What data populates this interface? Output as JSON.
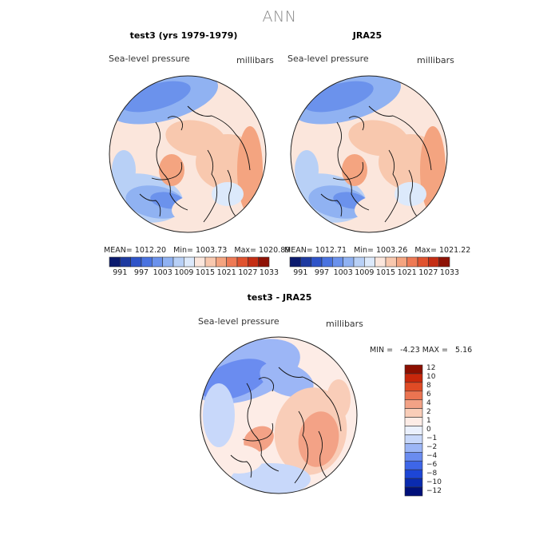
{
  "title": "ANN",
  "colors": {
    "abs_scale": [
      "#0a1a6e",
      "#1e3aa0",
      "#2f54c8",
      "#4a73e0",
      "#6b92ec",
      "#90b2f2",
      "#b8d0f6",
      "#dce9fb",
      "#fbe6dc",
      "#f8c8ae",
      "#f4a480",
      "#ee7a55",
      "#e0532f",
      "#c42e14",
      "#8e1206"
    ],
    "diff_scale": [
      "#00107a",
      "#0a2bb0",
      "#1d46d6",
      "#3e66e8",
      "#6a8cf0",
      "#9cb6f6",
      "#c8d8fa",
      "#eaf0fd",
      "#fdece6",
      "#f9cdb8",
      "#f3a286",
      "#eb7451",
      "#e04b25",
      "#c8270b",
      "#8c0f00"
    ],
    "coast": "#111111"
  },
  "panels": [
    {
      "title": "test3 (yrs 1979-1979)",
      "variable": "Sea-level pressure",
      "units": "millibars",
      "stats": {
        "mean_label": "MEAN=",
        "mean": "1012.20",
        "min_label": "Min=",
        "min": "1003.73",
        "max_label": "Max=",
        "max": "1020.89"
      },
      "colorbar_ticks": [
        "991",
        "997",
        "1003",
        "1009",
        "1015",
        "1021",
        "1027",
        "1033"
      ]
    },
    {
      "title": "JRA25",
      "variable": "Sea-level pressure",
      "units": "millibars",
      "stats": {
        "mean_label": "MEAN=",
        "mean": "1012.71",
        "min_label": "Min=",
        "min": "1003.26",
        "max_label": "Max=",
        "max": "1021.22"
      },
      "colorbar_ticks": [
        "991",
        "997",
        "1003",
        "1009",
        "1015",
        "1021",
        "1027",
        "1033"
      ]
    }
  ],
  "diff": {
    "title": "test3 - JRA25",
    "variable": "Sea-level pressure",
    "units": "millibars",
    "min_label": "MIN =",
    "min": "-4.23",
    "max_label": "MAX =",
    "max": "5.16",
    "colorbar_ticks": [
      "12",
      "10",
      "8",
      "6",
      "4",
      "2",
      "1",
      "0",
      "−1",
      "−2",
      "−4",
      "−6",
      "−8",
      "−10",
      "−12"
    ]
  },
  "chart_data": [
    {
      "type": "heatmap",
      "title": "test3 (yrs 1979-1979)",
      "subtitle": "Sea-level pressure",
      "units": "millibars",
      "projection": "north-polar-stereographic",
      "mean": 1012.2,
      "min": 1003.73,
      "max": 1020.89,
      "colorbar_levels": [
        991,
        997,
        1003,
        1009,
        1015,
        1021,
        1027,
        1033
      ]
    },
    {
      "type": "heatmap",
      "title": "JRA25",
      "subtitle": "Sea-level pressure",
      "units": "millibars",
      "projection": "north-polar-stereographic",
      "mean": 1012.71,
      "min": 1003.26,
      "max": 1021.22,
      "colorbar_levels": [
        991,
        997,
        1003,
        1009,
        1015,
        1021,
        1027,
        1033
      ]
    },
    {
      "type": "heatmap",
      "title": "test3 - JRA25",
      "subtitle": "Sea-level pressure",
      "units": "millibars",
      "projection": "north-polar-stereographic",
      "min": -4.23,
      "max": 5.16,
      "colorbar_levels": [
        -12,
        -10,
        -8,
        -6,
        -4,
        -2,
        -1,
        0,
        1,
        2,
        4,
        6,
        8,
        10,
        12
      ]
    }
  ]
}
